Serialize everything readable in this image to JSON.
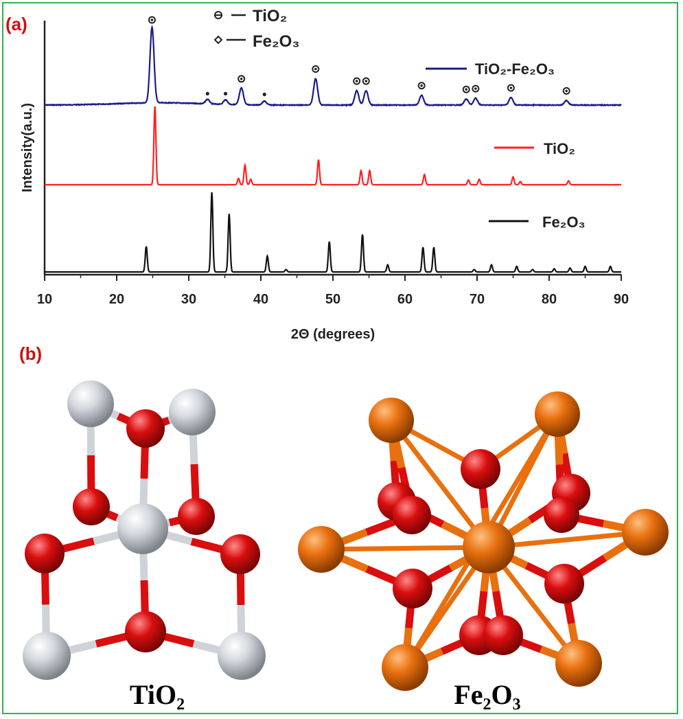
{
  "panels": {
    "a_label": "(a)",
    "b_label": "(b)",
    "label_color": "#cc1111"
  },
  "chart_data": {
    "type": "line",
    "xlabel": "2Θ (degrees)",
    "ylabel": "Intensity(a.u.)",
    "xlim": [
      10,
      90
    ],
    "xticks": [
      10,
      20,
      30,
      40,
      50,
      60,
      70,
      80,
      90
    ],
    "grid": false,
    "marker_legend": [
      {
        "symbol": "TiO2-mark",
        "text": "TiO₂"
      },
      {
        "symbol": "Fe2O3-mark",
        "text": "Fe₂O₃"
      }
    ],
    "series": [
      {
        "name": "TiO₂-Fe₂O₃",
        "color": "#1a1a8c",
        "peaks": [
          {
            "x": 24.9,
            "h": 1.0
          },
          {
            "x": 32.6,
            "h": 0.06
          },
          {
            "x": 35.1,
            "h": 0.06
          },
          {
            "x": 37.3,
            "h": 0.22
          },
          {
            "x": 40.5,
            "h": 0.05
          },
          {
            "x": 47.6,
            "h": 0.35
          },
          {
            "x": 53.3,
            "h": 0.19
          },
          {
            "x": 54.6,
            "h": 0.19
          },
          {
            "x": 62.3,
            "h": 0.13
          },
          {
            "x": 68.5,
            "h": 0.08
          },
          {
            "x": 69.8,
            "h": 0.09
          },
          {
            "x": 74.7,
            "h": 0.1
          },
          {
            "x": 82.4,
            "h": 0.06
          }
        ],
        "markers": [
          {
            "x": 24.9,
            "type": "TiO2"
          },
          {
            "x": 32.6,
            "type": "Fe2O3"
          },
          {
            "x": 35.1,
            "type": "Fe2O3"
          },
          {
            "x": 37.3,
            "type": "TiO2"
          },
          {
            "x": 40.5,
            "type": "Fe2O3"
          },
          {
            "x": 47.6,
            "type": "TiO2"
          },
          {
            "x": 53.3,
            "type": "TiO2"
          },
          {
            "x": 54.6,
            "type": "TiO2"
          },
          {
            "x": 62.3,
            "type": "TiO2"
          },
          {
            "x": 68.5,
            "type": "TiO2"
          },
          {
            "x": 69.8,
            "type": "TiO2"
          },
          {
            "x": 74.7,
            "type": "TiO2"
          },
          {
            "x": 82.4,
            "type": "TiO2"
          }
        ]
      },
      {
        "name": "TiO₂",
        "color": "#ff2020",
        "peaks": [
          {
            "x": 25.3,
            "h": 1.0
          },
          {
            "x": 36.9,
            "h": 0.08
          },
          {
            "x": 37.8,
            "h": 0.25
          },
          {
            "x": 38.6,
            "h": 0.07
          },
          {
            "x": 48.0,
            "h": 0.32
          },
          {
            "x": 53.9,
            "h": 0.18
          },
          {
            "x": 55.1,
            "h": 0.18
          },
          {
            "x": 62.7,
            "h": 0.13
          },
          {
            "x": 68.8,
            "h": 0.06
          },
          {
            "x": 70.3,
            "h": 0.07
          },
          {
            "x": 75.0,
            "h": 0.1
          },
          {
            "x": 76.0,
            "h": 0.04
          },
          {
            "x": 82.7,
            "h": 0.05
          }
        ]
      },
      {
        "name": "Fe₂O₃",
        "color": "#111111",
        "peaks": [
          {
            "x": 24.1,
            "h": 0.32
          },
          {
            "x": 33.2,
            "h": 1.0
          },
          {
            "x": 35.6,
            "h": 0.73
          },
          {
            "x": 40.9,
            "h": 0.2
          },
          {
            "x": 43.5,
            "h": 0.03
          },
          {
            "x": 49.5,
            "h": 0.38
          },
          {
            "x": 54.1,
            "h": 0.47
          },
          {
            "x": 57.6,
            "h": 0.09
          },
          {
            "x": 62.5,
            "h": 0.31
          },
          {
            "x": 64.0,
            "h": 0.31
          },
          {
            "x": 69.6,
            "h": 0.03
          },
          {
            "x": 72.0,
            "h": 0.09
          },
          {
            "x": 75.5,
            "h": 0.07
          },
          {
            "x": 77.7,
            "h": 0.03
          },
          {
            "x": 80.7,
            "h": 0.04
          },
          {
            "x": 82.9,
            "h": 0.05
          },
          {
            "x": 85.0,
            "h": 0.07
          },
          {
            "x": 88.5,
            "h": 0.07
          }
        ]
      }
    ]
  },
  "structures": [
    {
      "name": "TiO₂",
      "atom_colors": {
        "metal": "#cfd3d8",
        "oxygen": "#d90e0e"
      }
    },
    {
      "name": "Fe₂O₃",
      "atom_colors": {
        "metal": "#e8700f",
        "oxygen": "#d90e0e"
      }
    }
  ]
}
